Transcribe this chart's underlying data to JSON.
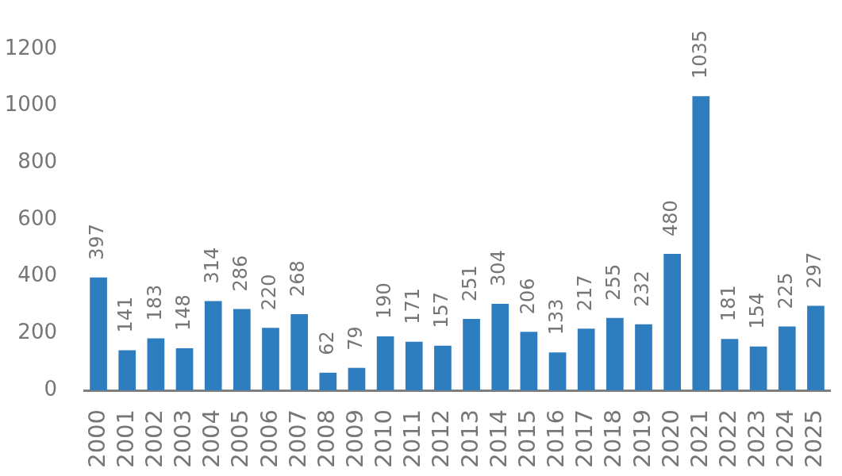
{
  "chart_data": {
    "type": "bar",
    "categories": [
      "2000",
      "2001",
      "2002",
      "2003",
      "2004",
      "2005",
      "2006",
      "2007",
      "2008",
      "2009",
      "2010",
      "2011",
      "2012",
      "2013",
      "2014",
      "2015",
      "2016",
      "2017",
      "2018",
      "2019",
      "2020",
      "2021",
      "2022",
      "2023",
      "2024",
      "2025"
    ],
    "values": [
      397,
      141,
      183,
      148,
      314,
      286,
      220,
      268,
      62,
      79,
      190,
      171,
      157,
      251,
      304,
      206,
      133,
      217,
      255,
      232,
      480,
      1035,
      181,
      154,
      225,
      297
    ],
    "color": "#2e7ebf",
    "ylim": [
      0,
      1200
    ],
    "yticks": [
      0,
      200,
      400,
      600,
      800,
      1000,
      1200
    ],
    "grid": false,
    "legend": false,
    "data_labels": true
  }
}
